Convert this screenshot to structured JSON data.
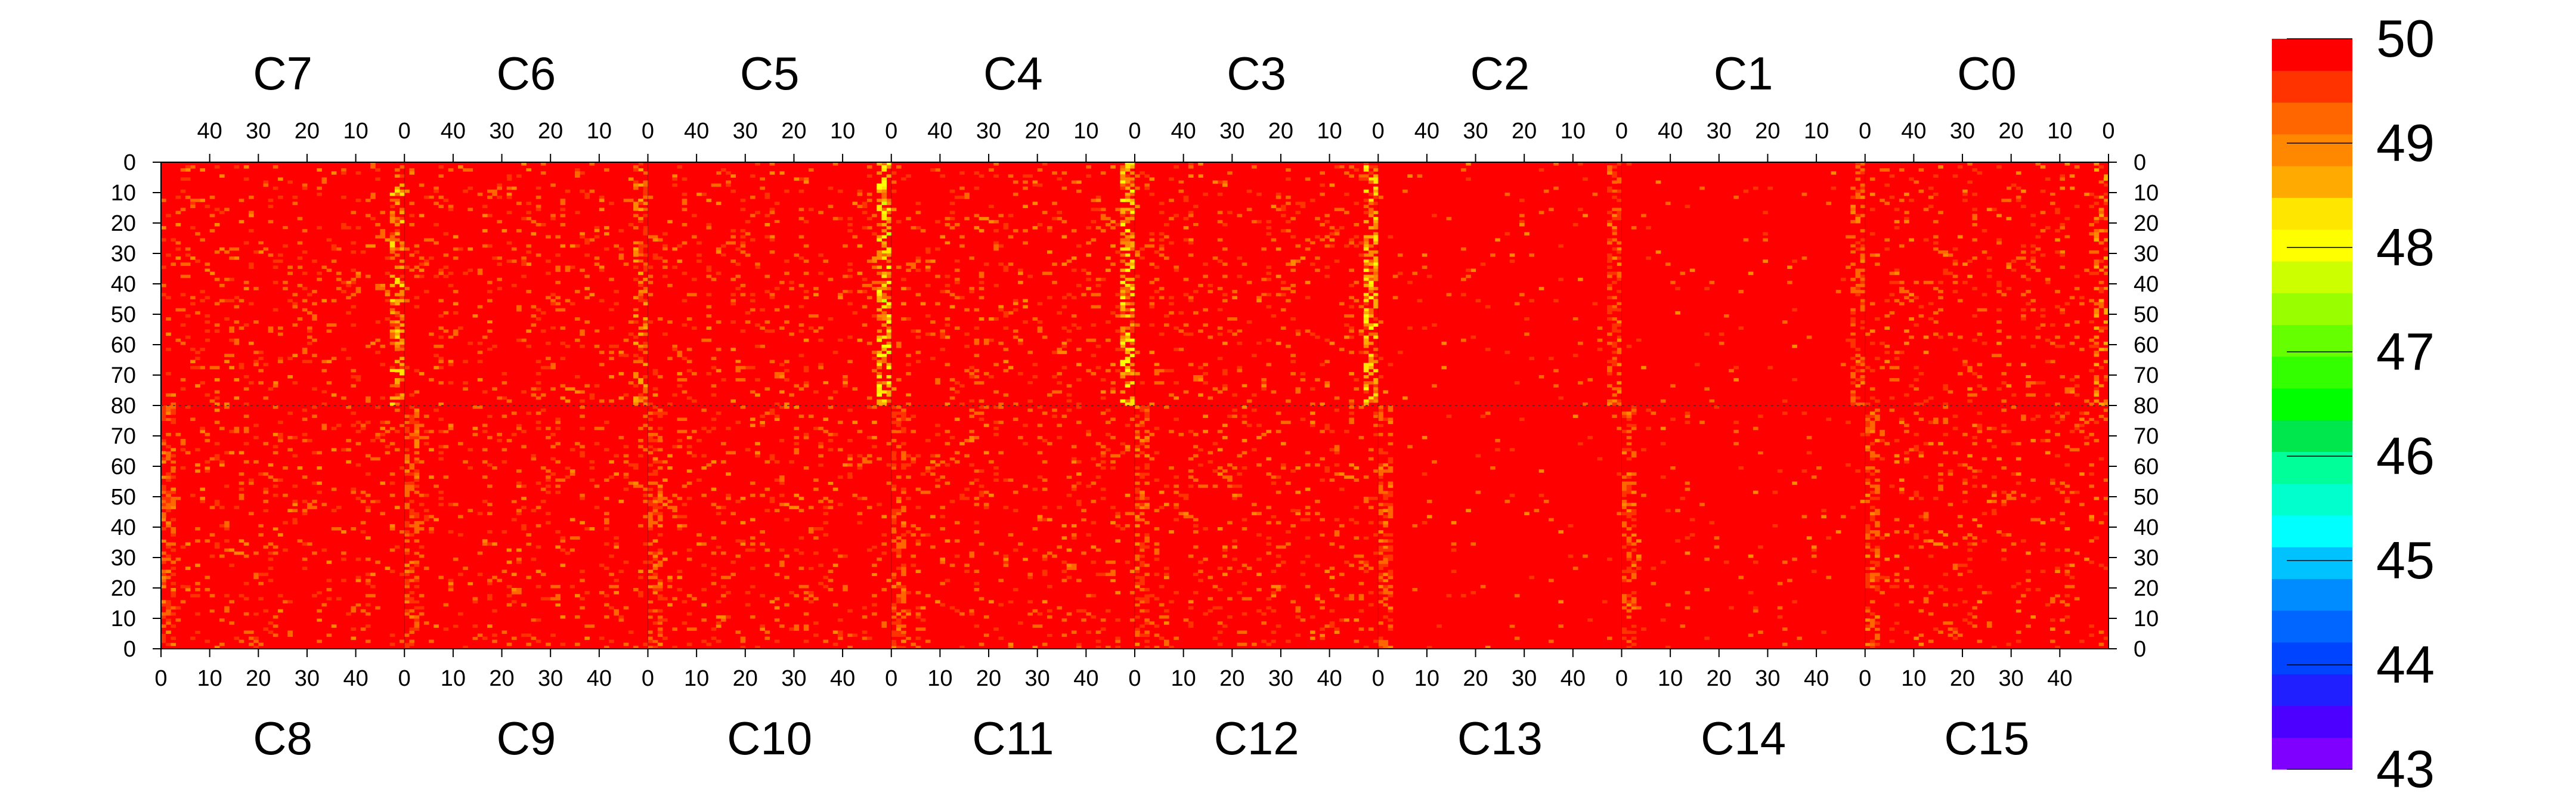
{
  "chart_data": {
    "type": "heatmap",
    "title": "",
    "xlabel": "",
    "ylabel": "",
    "zlim": [
      43,
      50
    ],
    "grid": false,
    "colorscale": [
      "#7f00ff",
      "#4c00ff",
      "#1f1fff",
      "#0044ff",
      "#0066ff",
      "#008cff",
      "#00c2ff",
      "#00ffff",
      "#00ffcc",
      "#00ff99",
      "#00e64d",
      "#00ff00",
      "#33ff00",
      "#66ff00",
      "#99ff00",
      "#ccff00",
      "#ffff00",
      "#ffe600",
      "#ffaa00",
      "#ff8800",
      "#ff6600",
      "#ff3300",
      "#ff0000"
    ],
    "colorbar": {
      "ticks": [
        "50",
        "49",
        "48",
        "47",
        "46",
        "45",
        "44",
        "43"
      ],
      "values": [
        50,
        49,
        48,
        47,
        46,
        45,
        44,
        43
      ]
    },
    "top_row": {
      "chips": [
        "C7",
        "C6",
        "C5",
        "C4",
        "C3",
        "C2",
        "C1",
        "C0"
      ],
      "x_ticks": [
        "40",
        "30",
        "20",
        "10",
        "0"
      ],
      "x_tick_values": [
        40,
        30,
        20,
        10,
        0
      ],
      "x_range": [
        50,
        0
      ],
      "y_ticks": [
        "0",
        "10",
        "20",
        "30",
        "40",
        "50",
        "60",
        "70",
        "80"
      ],
      "y_range": [
        0,
        80
      ]
    },
    "bottom_row": {
      "chips": [
        "C8",
        "C9",
        "C10",
        "C11",
        "C12",
        "C13",
        "C14",
        "C15"
      ],
      "x_ticks": [
        "0",
        "10",
        "20",
        "30",
        "40"
      ],
      "x_tick_values": [
        0,
        10,
        20,
        30,
        40
      ],
      "x_range": [
        0,
        50
      ],
      "y_ticks": [
        "80",
        "70",
        "60",
        "50",
        "40",
        "30",
        "20",
        "10",
        "0"
      ],
      "y_range": [
        0,
        80
      ]
    },
    "background_value": 50,
    "note_hot_columns": [
      {
        "chip": "C7",
        "col": 0,
        "value": 48.3
      },
      {
        "chip": "C6",
        "col": 0,
        "value": 48.6
      },
      {
        "chip": "C5",
        "col": 0,
        "value": 47.8
      },
      {
        "chip": "C4",
        "col": 0,
        "value": 47.9
      },
      {
        "chip": "C3",
        "col": 0,
        "value": 48.0
      },
      {
        "chip": "C0",
        "col": 0,
        "value": 48.6
      }
    ]
  }
}
